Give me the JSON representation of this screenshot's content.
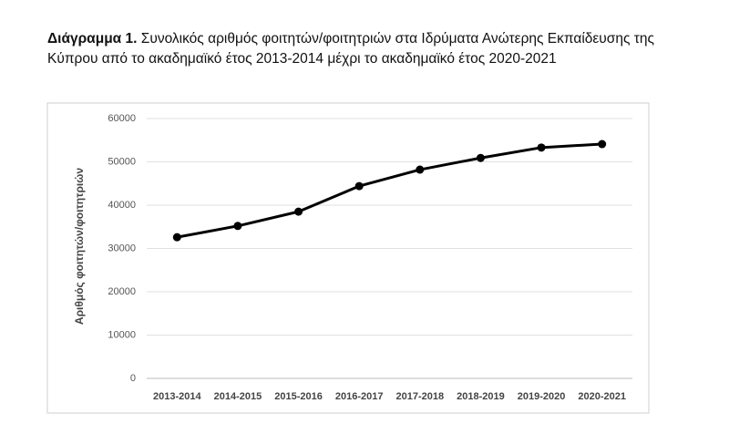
{
  "chart_data": {
    "type": "line",
    "figure_label": "Διάγραμμα 1.",
    "title": "Συνολικός αριθμός φοιτητών/φοιτητριών στα Ιδρύματα Ανώτερης Εκπαίδευσης της Κύπρου από το ακαδημαϊκό έτος 2013-2014 μέχρι το ακαδημαϊκό έτος 2020-2021",
    "y_label": "Αριθμός φοιτητών/φοιτητριών",
    "categories": [
      "2013-2014",
      "2014-2015",
      "2015-2016",
      "2016-2017",
      "2017-2018",
      "2018-2019",
      "2019-2020",
      "2020-2021"
    ],
    "values": [
      32600,
      35200,
      38500,
      44400,
      48200,
      50900,
      53300,
      54100
    ],
    "color": "#000000",
    "ylim": [
      0,
      60000
    ],
    "yticks": [
      0,
      10000,
      20000,
      30000,
      40000,
      50000,
      60000
    ],
    "grid": true
  }
}
